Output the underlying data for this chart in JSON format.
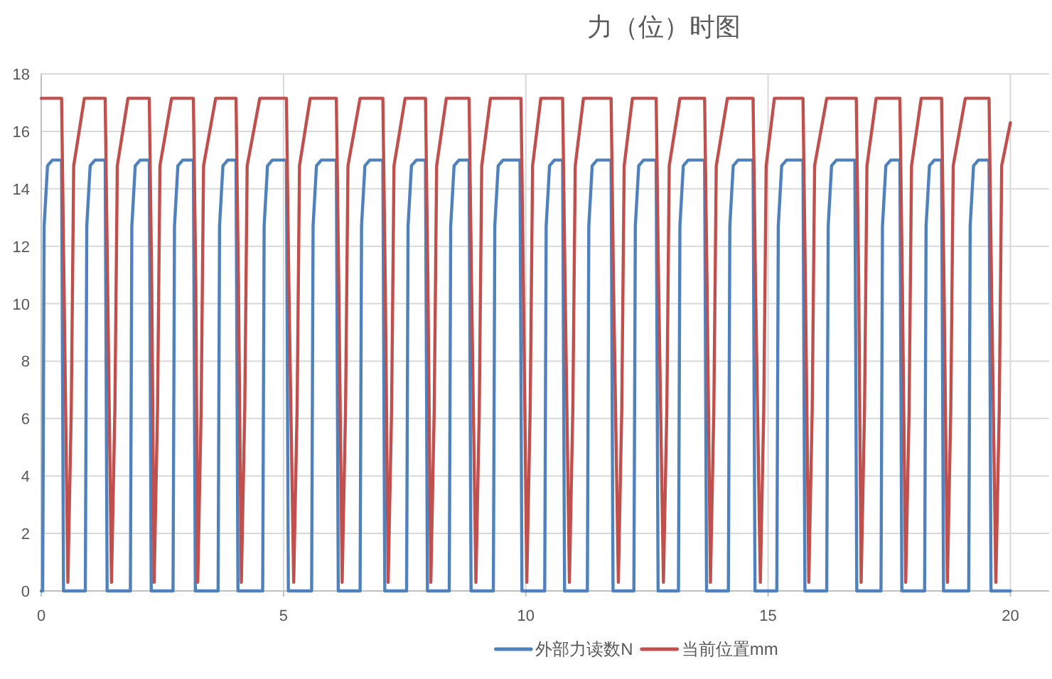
{
  "chart_data": {
    "type": "line",
    "title": "力（位）时图",
    "xlim": [
      0,
      20.8
    ],
    "xticks": [
      0,
      5,
      10,
      15,
      20
    ],
    "ylim": [
      0,
      18
    ],
    "yticks": [
      0,
      2,
      4,
      6,
      8,
      10,
      12,
      14,
      16,
      18
    ],
    "grid": true,
    "legend": "bottom",
    "line_style": "solid",
    "series": [
      {
        "name": "外部力读数N",
        "color": "#4f81bd",
        "x": [
          0,
          0.03,
          0.06,
          0.13,
          0.23,
          0.42,
          0.46,
          0.91,
          0.94,
          1.01,
          1.11,
          1.32,
          1.36,
          1.84,
          1.87,
          1.94,
          2.04,
          2.23,
          2.27,
          2.72,
          2.75,
          2.82,
          2.92,
          3.14,
          3.18,
          3.65,
          3.68,
          3.75,
          3.85,
          4.02,
          4.06,
          4.57,
          4.6,
          4.67,
          4.77,
          5.06,
          5.1,
          5.58,
          5.61,
          5.68,
          5.78,
          6.09,
          6.13,
          6.58,
          6.61,
          6.68,
          6.78,
          7.05,
          7.09,
          7.54,
          7.57,
          7.64,
          7.74,
          7.93,
          7.97,
          8.42,
          8.45,
          8.52,
          8.62,
          8.83,
          8.87,
          9.33,
          9.36,
          9.43,
          9.53,
          9.88,
          9.92,
          10.39,
          10.42,
          10.49,
          10.59,
          10.76,
          10.8,
          11.27,
          11.3,
          11.37,
          11.47,
          11.76,
          11.8,
          12.23,
          12.26,
          12.33,
          12.43,
          12.69,
          12.73,
          13.15,
          13.18,
          13.25,
          13.35,
          13.69,
          13.73,
          14.18,
          14.21,
          14.28,
          14.38,
          14.69,
          14.73,
          15.18,
          15.21,
          15.28,
          15.38,
          15.72,
          15.76,
          16.21,
          16.24,
          16.31,
          16.41,
          16.79,
          16.83,
          17.33,
          17.36,
          17.43,
          17.53,
          17.72,
          17.76,
          18.23,
          18.26,
          18.33,
          18.43,
          18.58,
          18.62,
          19.14,
          19.17,
          19.24,
          19.34,
          19.56,
          19.6,
          20.0
        ],
        "values": [
          0,
          0,
          12.7,
          14.8,
          15,
          15,
          0,
          0,
          12.7,
          14.8,
          15,
          15,
          0,
          0,
          12.7,
          14.8,
          15,
          15,
          0,
          0,
          12.7,
          14.8,
          15,
          15,
          0,
          0,
          12.7,
          14.8,
          15,
          15,
          0,
          0,
          12.7,
          14.8,
          15,
          15,
          0,
          0,
          12.7,
          14.8,
          15,
          15,
          0,
          0,
          12.7,
          14.8,
          15,
          15,
          0,
          0,
          12.7,
          14.8,
          15,
          15,
          0,
          0,
          12.7,
          14.8,
          15,
          15,
          0,
          0,
          12.7,
          14.8,
          15,
          15,
          0,
          0,
          12.7,
          14.8,
          15,
          15,
          0,
          0,
          12.7,
          14.8,
          15,
          15,
          0,
          0,
          12.7,
          14.8,
          15,
          15,
          0,
          0,
          12.7,
          14.8,
          15,
          15,
          0,
          0,
          12.7,
          14.8,
          15,
          15,
          0,
          0,
          12.7,
          14.8,
          15,
          15,
          0,
          0,
          12.7,
          14.8,
          15,
          15,
          0,
          0,
          12.7,
          14.8,
          15,
          15,
          0,
          0,
          12.7,
          14.8,
          15,
          15,
          0,
          0,
          12.7,
          14.8,
          15,
          15,
          0,
          0
        ]
      },
      {
        "name": "当前位置mm",
        "color": "#c0504d",
        "x": [
          0,
          0.42,
          0.47,
          0.55,
          0.62,
          0.67,
          0.89,
          1.32,
          1.37,
          1.45,
          1.52,
          1.57,
          1.79,
          2.23,
          2.28,
          2.33,
          2.4,
          2.45,
          2.69,
          3.14,
          3.19,
          3.23,
          3.3,
          3.35,
          3.6,
          4.02,
          4.07,
          4.13,
          4.2,
          4.25,
          4.51,
          5.06,
          5.11,
          5.21,
          5.28,
          5.33,
          5.55,
          6.09,
          6.14,
          6.21,
          6.28,
          6.33,
          6.58,
          7.05,
          7.1,
          7.16,
          7.23,
          7.28,
          7.51,
          7.93,
          7.98,
          8.04,
          8.11,
          8.16,
          8.36,
          8.83,
          8.88,
          8.97,
          9.04,
          9.09,
          9.27,
          9.9,
          9.95,
          10.02,
          10.09,
          10.14,
          10.31,
          10.76,
          10.81,
          10.9,
          10.97,
          11.02,
          11.19,
          11.76,
          11.81,
          11.91,
          11.98,
          12.03,
          12.2,
          12.69,
          12.74,
          12.84,
          12.91,
          12.96,
          13.18,
          13.69,
          13.74,
          13.81,
          13.88,
          13.93,
          14.16,
          14.69,
          14.74,
          14.84,
          14.91,
          14.96,
          15.13,
          15.72,
          15.77,
          15.84,
          15.91,
          15.96,
          16.21,
          16.82,
          16.87,
          16.92,
          16.99,
          17.04,
          17.23,
          17.72,
          17.77,
          17.84,
          17.91,
          17.96,
          18.16,
          18.58,
          18.63,
          18.7,
          18.77,
          18.82,
          19.07,
          19.56,
          19.61,
          19.7,
          19.77,
          19.82,
          20.0
        ],
        "values": [
          17.15,
          17.15,
          10.7,
          0.3,
          6.3,
          14.8,
          17.15,
          17.15,
          10.7,
          0.3,
          6.3,
          14.8,
          17.15,
          17.15,
          10.7,
          0.3,
          6.3,
          14.8,
          17.15,
          17.15,
          10.7,
          0.3,
          6.3,
          14.8,
          17.15,
          17.15,
          10.7,
          0.3,
          6.3,
          14.8,
          17.15,
          17.15,
          10.7,
          0.3,
          6.3,
          14.8,
          17.15,
          17.15,
          10.7,
          0.3,
          6.3,
          14.8,
          17.15,
          17.15,
          10.7,
          0.3,
          6.3,
          14.8,
          17.15,
          17.15,
          10.7,
          0.3,
          6.3,
          14.8,
          17.15,
          17.15,
          10.7,
          0.3,
          6.3,
          14.8,
          17.15,
          17.15,
          10.7,
          0.3,
          6.3,
          14.8,
          17.15,
          17.15,
          10.7,
          0.3,
          6.3,
          14.8,
          17.15,
          17.15,
          10.7,
          0.3,
          6.3,
          14.8,
          17.15,
          17.15,
          10.7,
          0.3,
          6.3,
          14.8,
          17.15,
          17.15,
          10.7,
          0.3,
          6.3,
          14.8,
          17.15,
          17.15,
          10.7,
          0.3,
          6.3,
          14.8,
          17.15,
          17.15,
          10.7,
          0.3,
          6.3,
          14.8,
          17.15,
          17.15,
          10.7,
          0.3,
          6.3,
          14.8,
          17.15,
          17.15,
          10.7,
          0.3,
          6.3,
          14.8,
          17.15,
          17.15,
          10.7,
          0.3,
          6.3,
          14.8,
          17.15,
          17.15,
          10.7,
          0.3,
          6.3,
          14.8,
          16.3
        ]
      }
    ]
  }
}
